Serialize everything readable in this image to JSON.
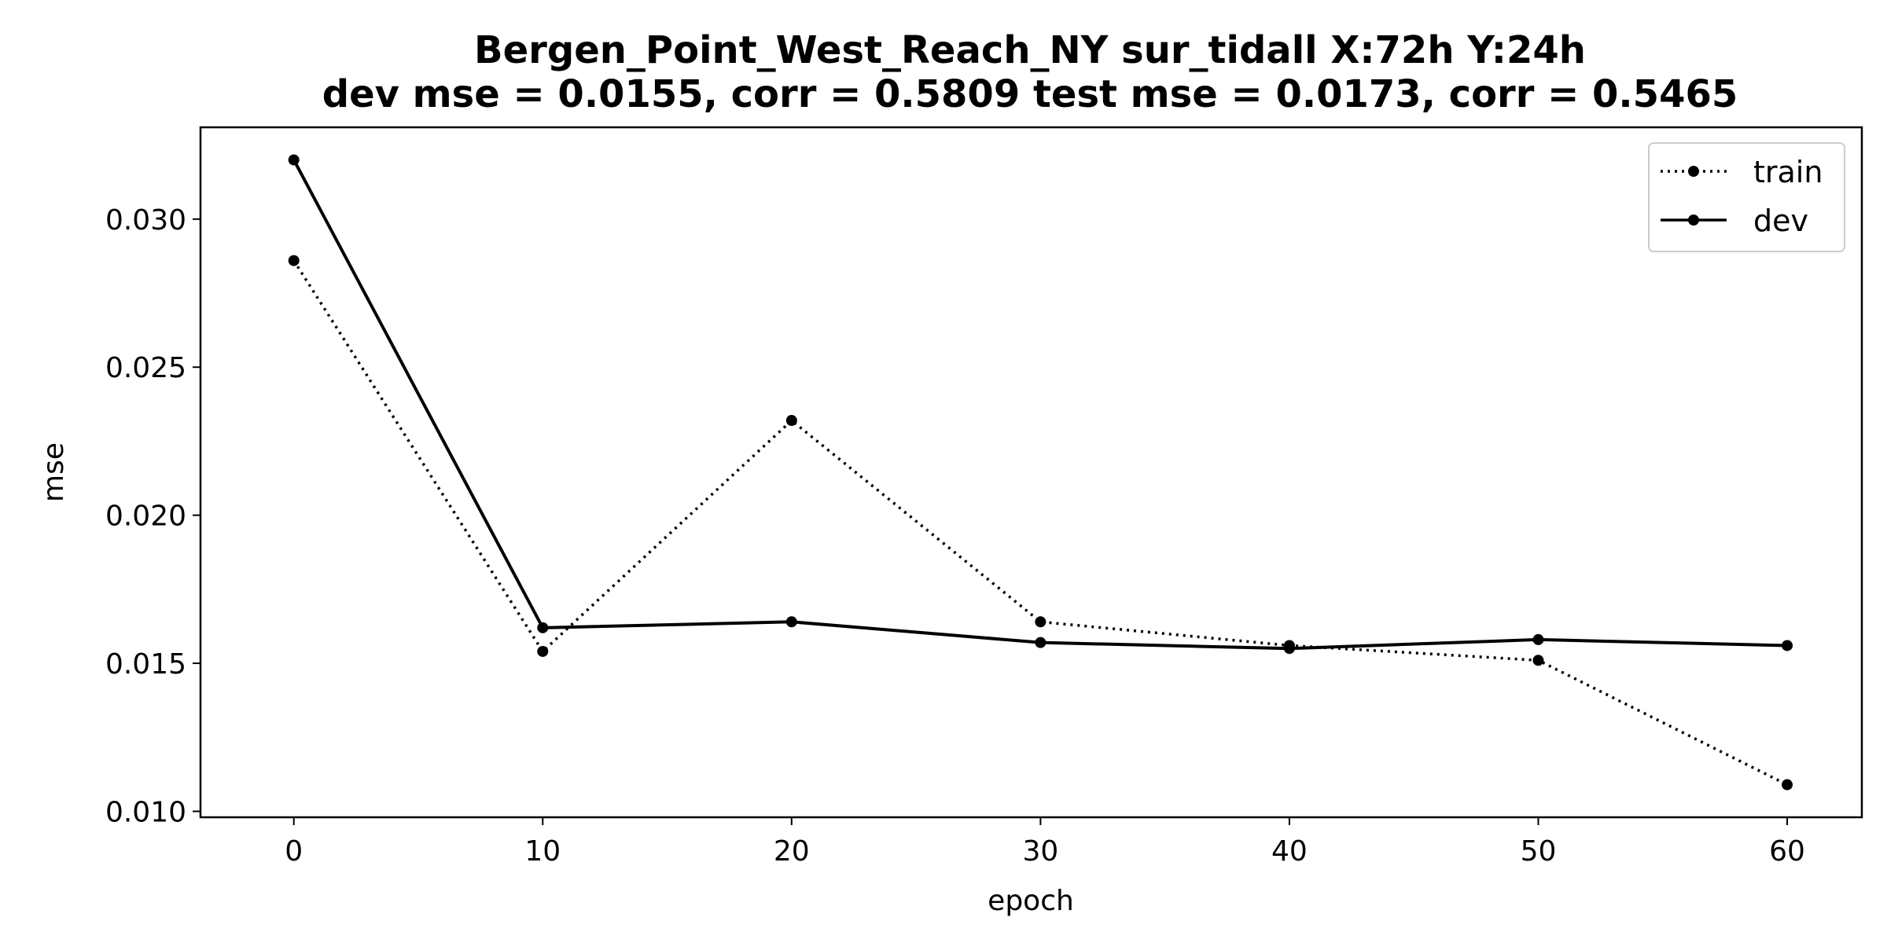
{
  "chart_data": {
    "type": "line",
    "title": "Bergen_Point_West_Reach_NY   sur_tidall   X:72h   Y:24h",
    "subtitle": "dev mse = 0.0155, corr = 0.5809   test mse = 0.0173, corr = 0.5465",
    "xlabel": "epoch",
    "ylabel": "mse",
    "xlim": [
      -3.75,
      63.0
    ],
    "ylim": [
      0.0098,
      0.0331
    ],
    "xticks": [
      0,
      10,
      20,
      30,
      40,
      50,
      60
    ],
    "yticks": [
      0.01,
      0.015,
      0.02,
      0.025,
      0.03
    ],
    "ytick_labels": [
      "0.010",
      "0.015",
      "0.020",
      "0.025",
      "0.030"
    ],
    "x": [
      0,
      10,
      20,
      30,
      40,
      50,
      60
    ],
    "series": [
      {
        "name": "train",
        "style": "dotted",
        "values": [
          0.0286,
          0.0154,
          0.0232,
          0.0164,
          0.0156,
          0.0151,
          0.0109
        ]
      },
      {
        "name": "dev",
        "style": "solid",
        "values": [
          0.032,
          0.0162,
          0.0164,
          0.0157,
          0.0155,
          0.0158,
          0.0156
        ]
      }
    ],
    "legend_position": "top-right",
    "grid": false,
    "colors": {
      "line": "#000000",
      "frame": "#000000",
      "background": "#ffffff"
    }
  }
}
